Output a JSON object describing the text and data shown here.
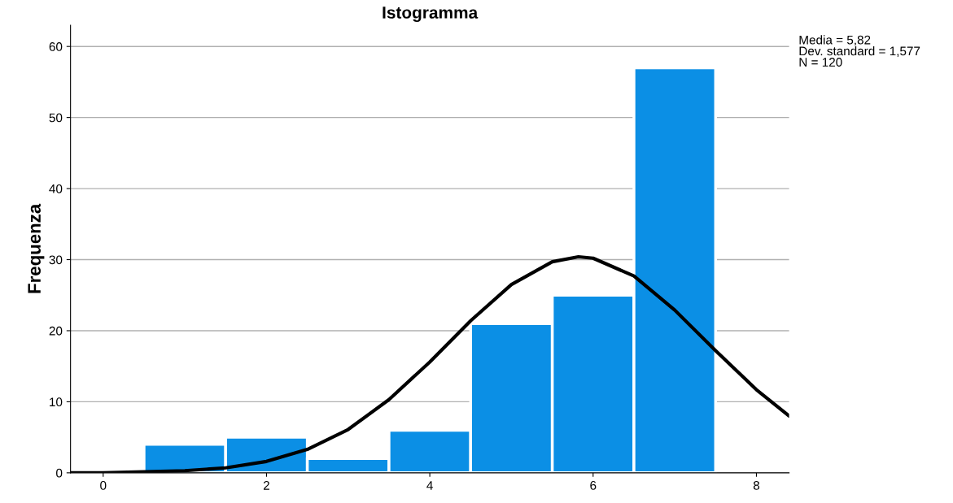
{
  "chart_data": {
    "type": "histogram",
    "title": "Istogramma",
    "ylabel": "Frequenza",
    "bins": [
      0.5,
      1.5,
      2.5,
      3.5,
      4.5,
      5.5,
      6.5,
      7.5
    ],
    "series": [
      {
        "color": "#0b8fe5",
        "values": [
          4,
          5,
          2,
          6,
          21,
          25,
          57
        ]
      },
      {
        "type": "line",
        "color": "#000000",
        "x": [
          -0.4,
          0,
          1,
          1.5,
          2,
          2.5,
          3,
          3.5,
          4,
          4.5,
          5,
          5.5,
          5.82,
          6,
          6.5,
          7,
          7.5,
          8,
          8.4
        ],
        "values": [
          0.0,
          0.0,
          0.3,
          0.7,
          1.6,
          3.3,
          6.1,
          10.3,
          15.6,
          21.4,
          26.5,
          29.7,
          30.4,
          30.2,
          27.7,
          22.9,
          17.2,
          11.7,
          8.0
        ]
      }
    ],
    "xlim": [
      -0.4,
      8.4
    ],
    "xticks": [
      0,
      2,
      4,
      6,
      8
    ],
    "ylim": [
      0,
      63
    ],
    "yticks": [
      0,
      10,
      20,
      30,
      40,
      50,
      60
    ],
    "grid": "y",
    "annotations": [
      "Media = 5,82",
      "Dev. standard = 1,577",
      "N = 120"
    ]
  }
}
